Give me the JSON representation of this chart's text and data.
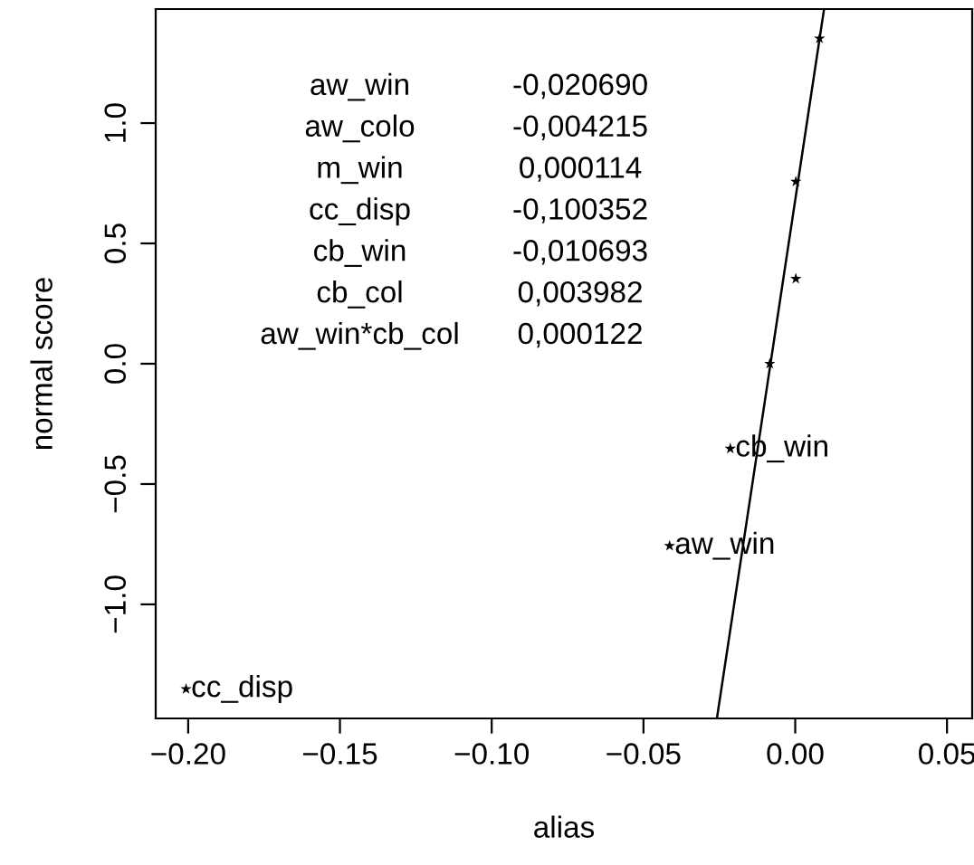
{
  "chart_data": {
    "type": "scatter",
    "xlabel": "alias",
    "ylabel": "normal score",
    "x": [
      -0.2007,
      -0.0414,
      -0.0214,
      -0.0084,
      0.0002,
      0.0002,
      0.008
    ],
    "series": [
      {
        "color": "#000000",
        "values": [
          -1.352,
          -0.757,
          -0.353,
          0.0,
          0.353,
          0.757,
          1.352
        ],
        "marker": "star"
      },
      {
        "type": "line",
        "color": "#000000",
        "x": [
          -0.0258,
          0.0095
        ],
        "values": [
          -1.474,
          1.474
        ],
        "marker": "none",
        "line_style": "solid"
      }
    ],
    "annotations": [
      {
        "text": "cc_disp",
        "x": -0.2007,
        "y": -1.352
      },
      {
        "text": "aw_win",
        "x": -0.0414,
        "y": -0.757
      },
      {
        "text": "cb_win",
        "x": -0.0214,
        "y": -0.353
      },
      "aw_win",
      "-0,020690",
      "aw_colo",
      "-0,004215",
      "m_win",
      "0,000114",
      "cc_disp",
      "-0,100352",
      "cb_win",
      "-0,010693",
      "cb_col",
      "0,003982",
      "aw_win*cb_col",
      "0,000122"
    ],
    "xlim": [
      -0.2107,
      0.0583
    ],
    "ylim": [
      -1.474,
      1.474
    ],
    "xticks": [
      {
        "value": -0.2,
        "label": "−0.20"
      },
      {
        "value": -0.15,
        "label": "−0.15"
      },
      {
        "value": -0.1,
        "label": "−0.10"
      },
      {
        "value": -0.05,
        "label": "−0.05"
      },
      {
        "value": 0.0,
        "label": "0.00"
      },
      {
        "value": 0.05,
        "label": "0.05"
      }
    ],
    "yticks": [
      {
        "value": -1.0,
        "label": "−1.0"
      },
      {
        "value": -0.5,
        "label": "−0.5"
      },
      {
        "value": 0.0,
        "label": "0.0"
      },
      {
        "value": 0.5,
        "label": "0.5"
      },
      {
        "value": 1.0,
        "label": "1.0"
      }
    ],
    "grid": false,
    "legend": false
  }
}
